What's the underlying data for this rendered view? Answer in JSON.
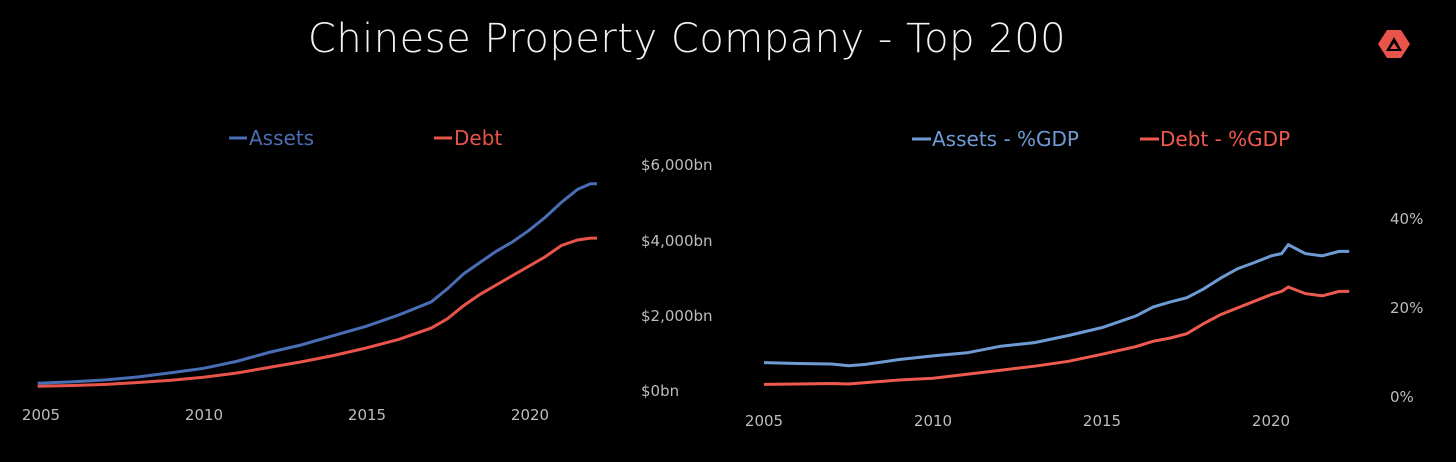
{
  "title": "Chinese Property Company - Top 200",
  "logo_icon": "triangle-logo-icon",
  "colors": {
    "assets": "#4a6eb5",
    "debt": "#e8534a",
    "assets_pct": "#6f9bd4",
    "debt_pct": "#ef5a4f",
    "text": "#bdbdbd",
    "logo": "#e8534a"
  },
  "chart_data": [
    {
      "type": "line",
      "legend": "top-center",
      "x_ticks": [
        "2005",
        "2010",
        "2015",
        "2020"
      ],
      "y_ticks": [
        "$0bn",
        "$2,000bn",
        "$4,000bn",
        "$6,000bn"
      ],
      "y_axis_side": "right",
      "ylim": [
        0,
        6000
      ],
      "xlim": [
        2005,
        2022.5
      ],
      "grid": false,
      "series": [
        {
          "name": "Assets",
          "color": "#4a6eb5",
          "x": [
            2004.9,
            2006,
            2007,
            2008,
            2009,
            2010,
            2011,
            2012,
            2013,
            2014,
            2015,
            2016,
            2017,
            2017.5,
            2018,
            2018.5,
            2019,
            2019.5,
            2020,
            2020.5,
            2021,
            2021.5,
            2021.9,
            2022.1
          ],
          "values": [
            180,
            220,
            270,
            350,
            460,
            580,
            760,
            1000,
            1200,
            1450,
            1700,
            2000,
            2350,
            2700,
            3100,
            3400,
            3700,
            3950,
            4250,
            4600,
            5000,
            5350,
            5500,
            5500
          ]
        },
        {
          "name": "Debt",
          "color": "#e8534a",
          "x": [
            2004.9,
            2006,
            2007,
            2008,
            2009,
            2010,
            2011,
            2012,
            2013,
            2014,
            2015,
            2016,
            2017,
            2017.5,
            2018,
            2018.5,
            2019,
            2019.5,
            2020,
            2020.5,
            2021,
            2021.5,
            2021.9,
            2022.1
          ],
          "values": [
            100,
            120,
            150,
            200,
            260,
            340,
            450,
            600,
            750,
            920,
            1120,
            1350,
            1650,
            1900,
            2250,
            2550,
            2800,
            3050,
            3300,
            3550,
            3850,
            4000,
            4050,
            4050
          ]
        }
      ]
    },
    {
      "type": "line",
      "legend": "top-center",
      "x_ticks": [
        "2005",
        "2010",
        "2015",
        "2020"
      ],
      "y_ticks": [
        "0%",
        "20%",
        "40%"
      ],
      "y_axis_side": "right",
      "ylim": [
        0,
        40
      ],
      "xlim": [
        2005,
        2022.5
      ],
      "grid": false,
      "series": [
        {
          "name": "Assets - %GDP",
          "color": "#6f9bd4",
          "x": [
            2005,
            2006,
            2007,
            2007.5,
            2008,
            2009,
            2010,
            2011,
            2012,
            2013,
            2014,
            2015,
            2016,
            2016.5,
            2017,
            2017.5,
            2018,
            2018.5,
            2019,
            2019.5,
            2020,
            2020.3,
            2020.5,
            2021,
            2021.5,
            2022,
            2022.3
          ],
          "values": [
            7.5,
            7.3,
            7.2,
            6.8,
            7.1,
            8.2,
            9.0,
            9.7,
            11.2,
            12.0,
            13.6,
            15.4,
            18.0,
            20.0,
            21.1,
            22.1,
            24.1,
            26.5,
            28.6,
            30.0,
            31.5,
            32.0,
            34.0,
            32.0,
            31.5,
            32.5,
            32.5
          ]
        },
        {
          "name": "Debt - %GDP",
          "color": "#ef5a4f",
          "x": [
            2005,
            2006,
            2007,
            2007.5,
            2008,
            2009,
            2010,
            2011,
            2012,
            2013,
            2014,
            2015,
            2016,
            2016.5,
            2017,
            2017.5,
            2018,
            2018.5,
            2019,
            2019.5,
            2020,
            2020.3,
            2020.5,
            2021,
            2021.5,
            2022,
            2022.3
          ],
          "values": [
            2.6,
            2.7,
            2.8,
            2.7,
            3.0,
            3.6,
            4.0,
            4.9,
            5.8,
            6.7,
            7.8,
            9.4,
            11.1,
            12.3,
            13.0,
            14.0,
            16.3,
            18.3,
            19.8,
            21.3,
            22.8,
            23.5,
            24.5,
            23.0,
            22.5,
            23.5,
            23.5
          ]
        }
      ]
    }
  ]
}
